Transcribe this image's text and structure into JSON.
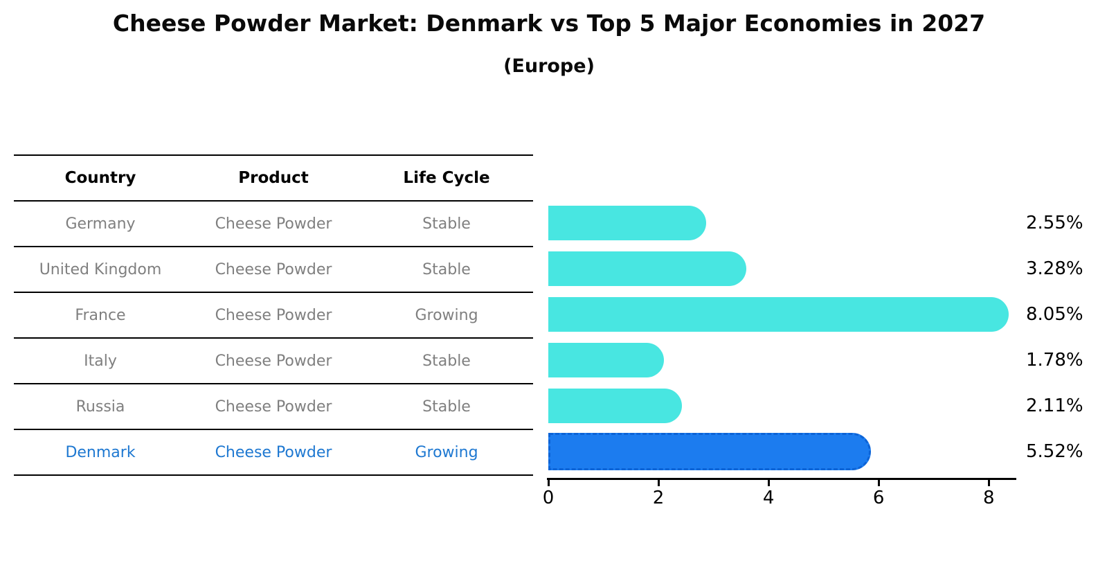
{
  "chart_data": {
    "type": "bar",
    "orientation": "horizontal",
    "title": "Cheese Powder Market: Denmark vs Top 5 Major Economies in 2027",
    "subtitle": "(Europe)",
    "categories": [
      "Germany",
      "United Kingdom",
      "France",
      "Italy",
      "Russia",
      "Denmark"
    ],
    "values": [
      2.55,
      3.28,
      8.05,
      1.78,
      2.11,
      5.52
    ],
    "value_labels": [
      "2.55%",
      "3.28%",
      "8.05%",
      "1.78%",
      "2.11%",
      "5.52%"
    ],
    "xticks": [
      0,
      2,
      4,
      6,
      8
    ],
    "xlim": [
      0,
      8.5
    ],
    "grid": false,
    "legend": false,
    "bar_color": "#48E6E1",
    "highlight_index": 5,
    "highlight_category": "Denmark",
    "highlight_color": "#1C7CEF",
    "highlight_border_color": "#0C63D6",
    "highlight_text_color": "#1E78D1"
  },
  "table": {
    "headers": [
      "Country",
      "Product",
      "Life Cycle"
    ],
    "rows": [
      {
        "country": "Germany",
        "product": "Cheese Powder",
        "life_cycle": "Stable",
        "highlight": false
      },
      {
        "country": "United Kingdom",
        "product": "Cheese Powder",
        "life_cycle": "Stable",
        "highlight": false
      },
      {
        "country": "France",
        "product": "Cheese Powder",
        "life_cycle": "Growing",
        "highlight": false
      },
      {
        "country": "Italy",
        "product": "Cheese Powder",
        "life_cycle": "Stable",
        "highlight": false
      },
      {
        "country": "Russia",
        "product": "Cheese Powder",
        "life_cycle": "Stable",
        "highlight": false
      },
      {
        "country": "Denmark",
        "product": "Cheese Powder",
        "life_cycle": "Growing",
        "highlight": true
      }
    ]
  }
}
